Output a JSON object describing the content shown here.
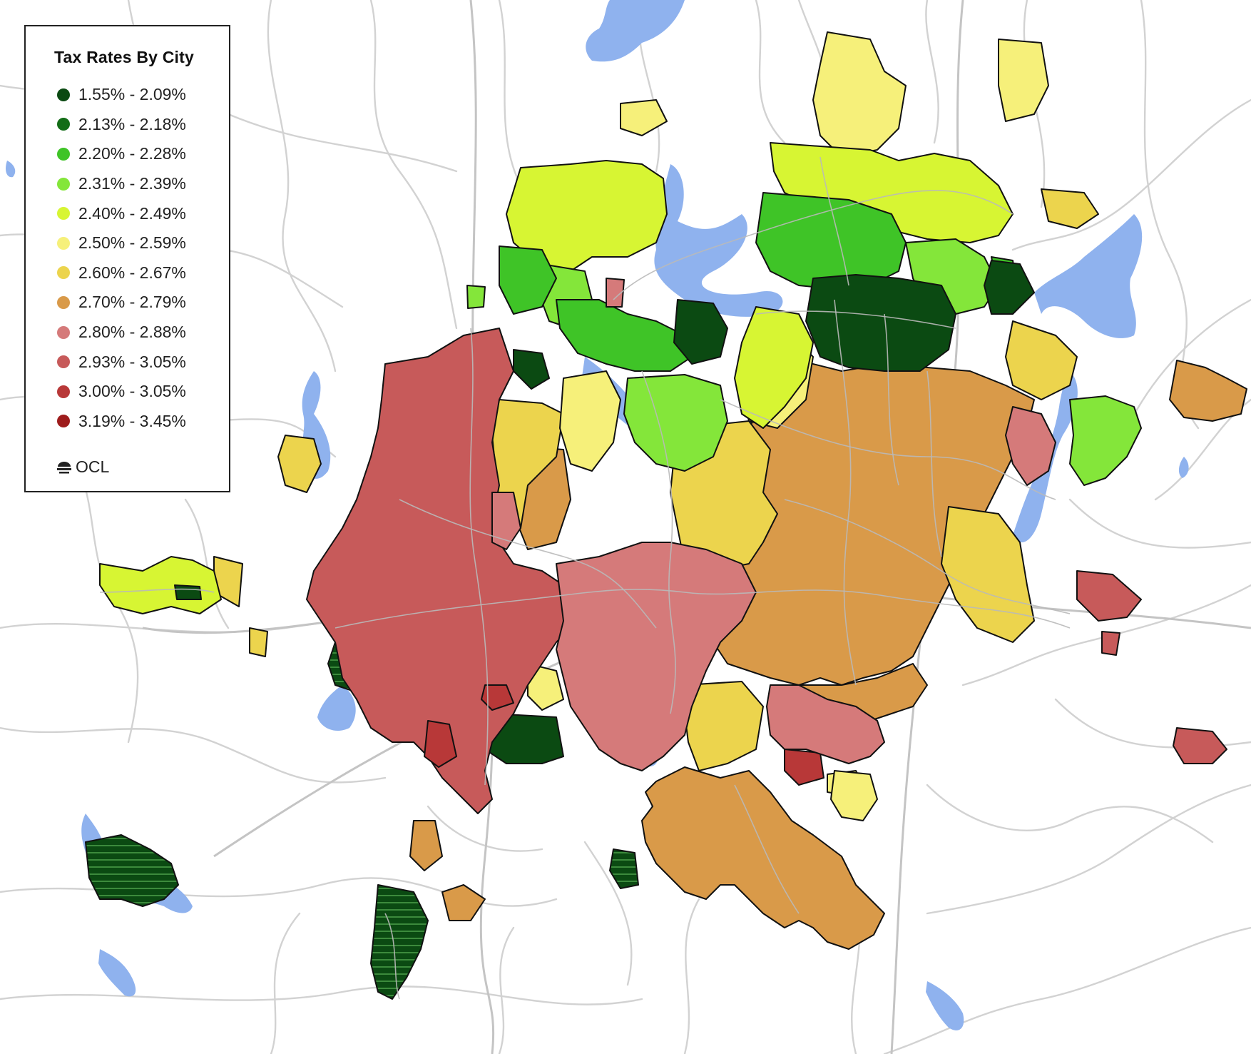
{
  "legend": {
    "title": "Tax Rates By City",
    "items": [
      {
        "label": "1.55% - 2.09%",
        "color": "#0b4a12"
      },
      {
        "label": "2.13% - 2.18%",
        "color": "#136d17"
      },
      {
        "label": "2.20% - 2.28%",
        "color": "#3fc427"
      },
      {
        "label": "2.31% - 2.39%",
        "color": "#84e63a"
      },
      {
        "label": "2.40% - 2.49%",
        "color": "#d7f533"
      },
      {
        "label": "2.50% - 2.59%",
        "color": "#f6f07a"
      },
      {
        "label": "2.60% - 2.67%",
        "color": "#ecd44d"
      },
      {
        "label": "2.70% - 2.79%",
        "color": "#d99a49"
      },
      {
        "label": "2.80% - 2.88%",
        "color": "#d57a7a"
      },
      {
        "label": "2.93% - 3.05%",
        "color": "#c75a5a"
      },
      {
        "label": "3.00% - 3.05%",
        "color": "#b83838"
      },
      {
        "label": "3.19% - 3.45%",
        "color": "#9e1c1c"
      }
    ]
  },
  "brand": {
    "text": "OCL",
    "icon": "ocl-logo-icon"
  },
  "colors": {
    "water": "#8fb2ee",
    "road": "#d2d2d2",
    "boundary": "#111111",
    "background": "#ffffff"
  }
}
